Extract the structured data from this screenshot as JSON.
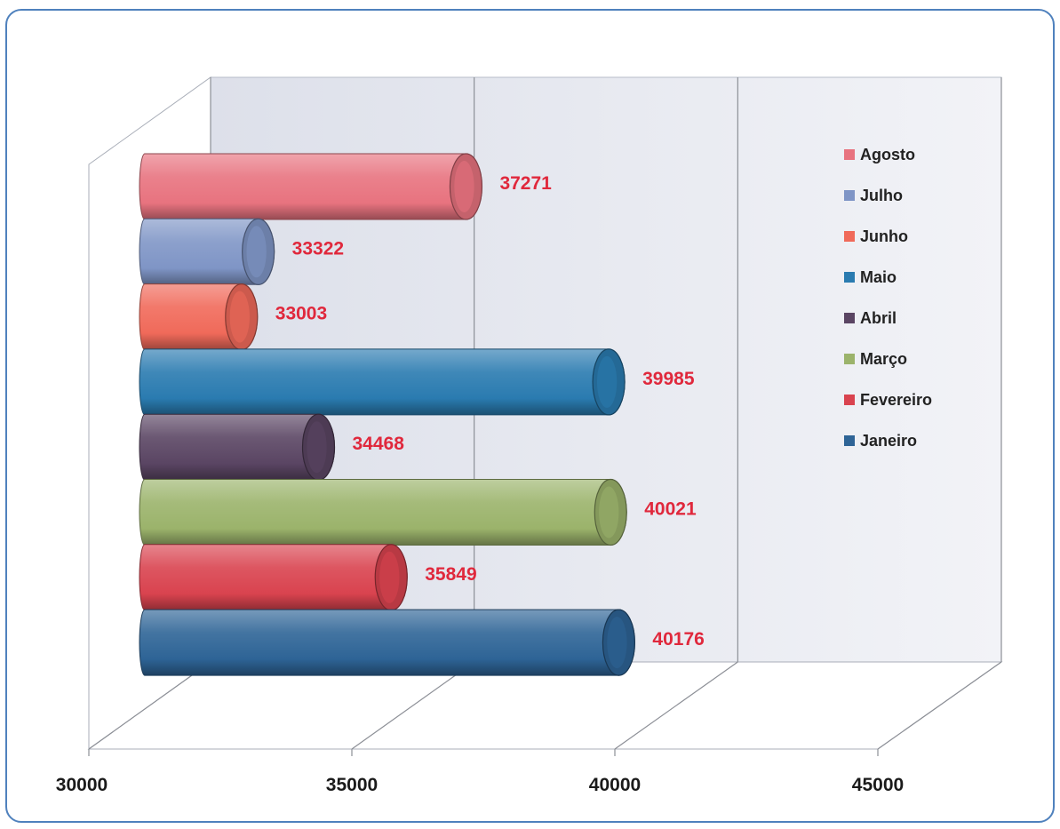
{
  "chart_data": {
    "type": "bar",
    "orientation": "horizontal",
    "style": "3d-cylinder",
    "categories": [
      "Janeiro",
      "Fevereiro",
      "Março",
      "Abril",
      "Maio",
      "Junho",
      "Julho",
      "Agosto"
    ],
    "values": [
      40176,
      35849,
      40021,
      34468,
      39985,
      33003,
      33322,
      37271
    ],
    "colors": [
      "#2e6496",
      "#d9434f",
      "#9bb36b",
      "#5a4563",
      "#2a7bb0",
      "#f06a5a",
      "#7f95c6",
      "#e8737f"
    ],
    "xlim": [
      30000,
      45000
    ],
    "xticks": [
      "30000",
      "35000",
      "40000",
      "45000"
    ],
    "legend": {
      "position": "right",
      "entries": [
        "Agosto",
        "Julho",
        "Junho",
        "Maio",
        "Abril",
        "Março",
        "Fevereiro",
        "Janeiro"
      ]
    },
    "data_label_color": "#e0283c",
    "grid": true
  }
}
